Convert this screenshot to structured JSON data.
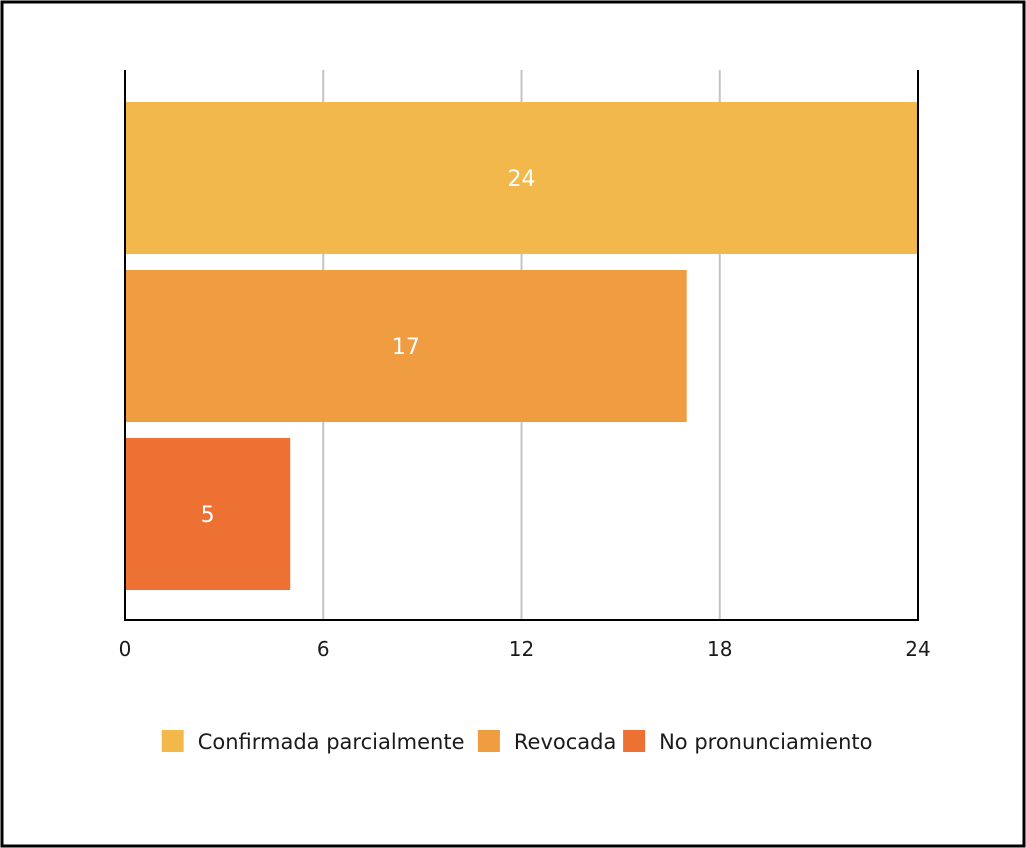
{
  "chart_data": {
    "type": "bar",
    "orientation": "horizontal",
    "categories": [
      "Confirmada parcialmente",
      "Revocada",
      "No pronunciamiento"
    ],
    "values": [
      24,
      17,
      5
    ],
    "data_labels": [
      "24",
      "17",
      "5"
    ],
    "colors": [
      "#f2b84b",
      "#f09c40",
      "#ec7133"
    ],
    "xlim": [
      0,
      24
    ],
    "x_ticks": [
      0,
      6,
      12,
      18,
      24
    ],
    "x_tick_labels": [
      "0",
      "6",
      "12",
      "18",
      "24"
    ],
    "grid": true,
    "legend": {
      "placement": "bottom",
      "entries": [
        "Confirmada parcialmente",
        "Revocada",
        "No pronunciamiento"
      ]
    },
    "title": "",
    "xlabel": "",
    "ylabel": ""
  }
}
